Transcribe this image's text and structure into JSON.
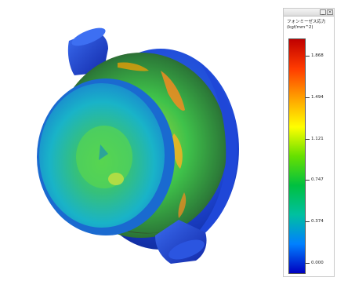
{
  "legend": {
    "title_line1": "フォンミーゼス応力",
    "title_line2": "(kgf/mm^2)",
    "window_buttons": {
      "minimize": "_",
      "close": "×"
    },
    "colormap": [
      "#c00000",
      "#ff3b00",
      "#ffa000",
      "#ffff00",
      "#66e000",
      "#00c040",
      "#00c0a0",
      "#0080ff",
      "#0000c0"
    ],
    "ticks": [
      {
        "value": 1.868,
        "label": "1.868"
      },
      {
        "value": 1.494,
        "label": "1.494"
      },
      {
        "value": 1.121,
        "label": "1.121"
      },
      {
        "value": 0.747,
        "label": "0.747"
      },
      {
        "value": 0.374,
        "label": "0.374"
      },
      {
        "value": 0.0,
        "label": "0.000"
      }
    ]
  },
  "model": {
    "colors": {
      "base_blue": "#1f47d8",
      "dark_blue": "#0f2a9a",
      "cyan": "#19b3c8",
      "green": "#3fc24a",
      "yellow_green": "#b7d93a",
      "orange": "#ff8a1e",
      "dark_brown": "#3a3320"
    }
  }
}
